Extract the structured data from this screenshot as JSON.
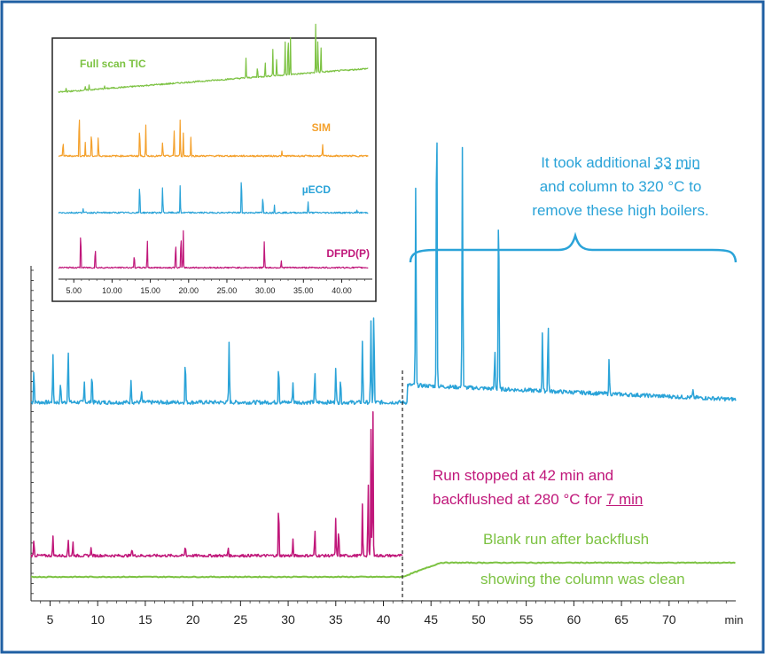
{
  "colors": {
    "frame": "#1f5fa3",
    "uecd": "#2aa3d8",
    "dfpd": "#c0177a",
    "blank": "#7cc242",
    "sim": "#f4a02b",
    "tic": "#7cc242",
    "axis": "#222222"
  },
  "annotations": {
    "high_boilers": {
      "line1": "It took additional ",
      "line1_num": "33",
      "line1_sp": " ",
      "line1_unit": "min",
      "line2": "and column to 320 °C to",
      "line3": "remove these high boilers."
    },
    "run_stopped": {
      "line1": "Run stopped at 42 min and",
      "line2_a": "backflushed at 280 °C for ",
      "line2_b": "7 min"
    },
    "blank": {
      "line1": "Blank run after backflush",
      "line2": "showing the column was clean"
    }
  },
  "chart_data": [
    {
      "type": "line",
      "xlabel": "min",
      "xlim": [
        3,
        77
      ],
      "xticks": [
        5,
        10,
        15,
        20,
        25,
        30,
        35,
        40,
        45,
        50,
        55,
        60,
        65,
        70
      ],
      "xtick_labels": [
        "5",
        "10",
        "15",
        "20",
        "25",
        "30",
        "35",
        "40",
        "45",
        "50",
        "55",
        "60",
        "65",
        "70"
      ],
      "backflush_marker_x": 42,
      "series": [
        {
          "color": "#2aa3d8",
          "x_end": 77,
          "baseline_level": 0.05,
          "peaks": [
            [
              3.3,
              0.1
            ],
            [
              5.3,
              0.14
            ],
            [
              6.1,
              0.06
            ],
            [
              6.9,
              0.17
            ],
            [
              8.6,
              0.06
            ],
            [
              9.4,
              0.09
            ],
            [
              13.5,
              0.07
            ],
            [
              14.6,
              0.03
            ],
            [
              19.2,
              0.13
            ],
            [
              23.8,
              0.18
            ],
            [
              29.0,
              0.12
            ],
            [
              30.5,
              0.06
            ],
            [
              32.8,
              0.09
            ],
            [
              35.0,
              0.11
            ],
            [
              35.5,
              0.07
            ],
            [
              37.8,
              0.19
            ],
            [
              38.7,
              0.24
            ],
            [
              39.0,
              0.28
            ],
            [
              43.4,
              0.6
            ],
            [
              45.6,
              0.94
            ],
            [
              48.3,
              0.74
            ],
            [
              51.7,
              0.12
            ],
            [
              52.1,
              0.61
            ],
            [
              56.7,
              0.18
            ],
            [
              57.3,
              0.21
            ],
            [
              63.7,
              0.1
            ],
            [
              72.5,
              0.02
            ]
          ]
        },
        {
          "color": "#c0177a",
          "x_end": 42,
          "baseline_level": 0.03,
          "peaks": [
            [
              3.3,
              0.08
            ],
            [
              5.3,
              0.09
            ],
            [
              6.9,
              0.08
            ],
            [
              7.4,
              0.06
            ],
            [
              9.3,
              0.04
            ],
            [
              13.6,
              0.04
            ],
            [
              19.2,
              0.05
            ],
            [
              23.7,
              0.04
            ],
            [
              29.0,
              0.26
            ],
            [
              30.5,
              0.07
            ],
            [
              32.8,
              0.12
            ],
            [
              35.0,
              0.17
            ],
            [
              35.3,
              0.13
            ],
            [
              37.8,
              0.23
            ],
            [
              38.4,
              0.36
            ],
            [
              38.7,
              0.55
            ],
            [
              38.9,
              0.66
            ]
          ]
        },
        {
          "color": "#7cc242",
          "x_end": 77,
          "step_start": 42,
          "step_end": 46,
          "low": 0.0,
          "high": 0.05
        }
      ]
    },
    {
      "type": "line",
      "xlim": [
        3,
        44
      ],
      "xticks": [
        5,
        10,
        15,
        20,
        25,
        30,
        35,
        40
      ],
      "xtick_labels": [
        "5.00",
        "10.00",
        "15.00",
        "20.00",
        "25.00",
        "30.00",
        "35.00",
        "40.00"
      ],
      "series": [
        {
          "name": "Full scan TIC",
          "color": "#7cc242",
          "peaks": [
            [
              4.0,
              0.08
            ],
            [
              6.5,
              0.06
            ],
            [
              7.0,
              0.1
            ],
            [
              9.0,
              0.05
            ],
            [
              27.5,
              0.4
            ],
            [
              29.0,
              0.25
            ],
            [
              30.0,
              0.32
            ],
            [
              31.0,
              0.55
            ],
            [
              31.5,
              0.35
            ],
            [
              32.6,
              0.7
            ],
            [
              33.0,
              1.0
            ],
            [
              33.3,
              0.8
            ],
            [
              36.6,
              1.0
            ],
            [
              36.9,
              0.75
            ],
            [
              37.3,
              0.5
            ]
          ]
        },
        {
          "name": "SIM",
          "color": "#f4a02b",
          "peaks": [
            [
              3.6,
              0.35
            ],
            [
              5.7,
              1.0
            ],
            [
              6.5,
              0.25
            ],
            [
              7.3,
              0.55
            ],
            [
              8.2,
              0.4
            ],
            [
              13.6,
              0.65
            ],
            [
              14.4,
              0.58
            ],
            [
              16.6,
              0.3
            ],
            [
              18.1,
              0.55
            ],
            [
              18.9,
              0.7
            ],
            [
              19.3,
              0.45
            ],
            [
              20.3,
              0.35
            ],
            [
              32.2,
              0.08
            ],
            [
              37.5,
              0.22
            ]
          ]
        },
        {
          "name": "µECD",
          "color": "#2aa3d8",
          "peaks": [
            [
              6.2,
              0.1
            ],
            [
              13.6,
              0.7
            ],
            [
              16.6,
              0.6
            ],
            [
              18.9,
              0.55
            ],
            [
              26.9,
              0.9
            ],
            [
              29.7,
              0.4
            ],
            [
              31.2,
              0.15
            ],
            [
              35.6,
              0.25
            ],
            [
              42.0,
              0.05
            ]
          ]
        },
        {
          "name": "DFPD(P)",
          "color": "#c0177a",
          "peaks": [
            [
              5.9,
              1.0
            ],
            [
              7.8,
              0.55
            ],
            [
              12.9,
              0.35
            ],
            [
              14.6,
              0.7
            ],
            [
              18.3,
              0.68
            ],
            [
              19.0,
              0.9
            ],
            [
              19.3,
              0.85
            ],
            [
              29.9,
              0.7
            ],
            [
              32.1,
              0.18
            ]
          ]
        }
      ]
    }
  ]
}
